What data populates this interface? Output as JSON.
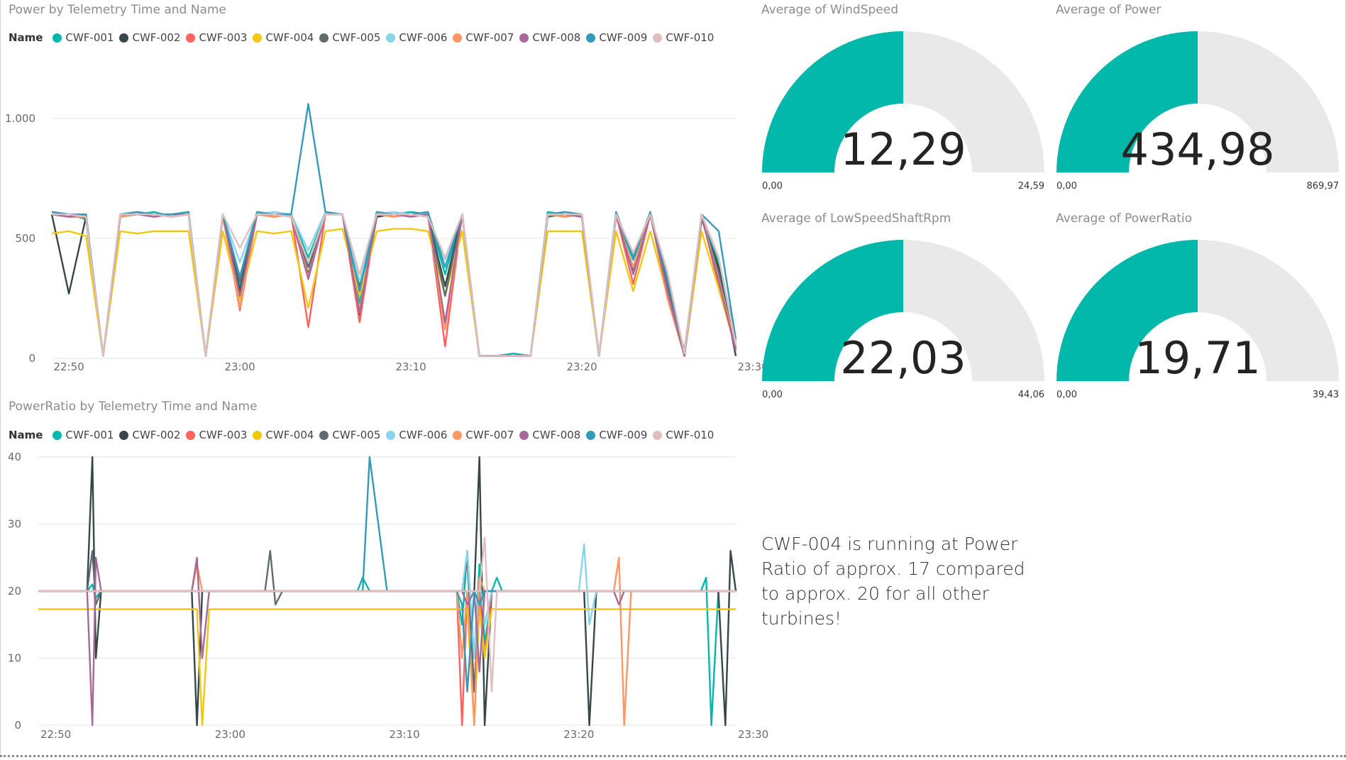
{
  "charts": {
    "power": {
      "title": "Power by Telemetry Time and Name"
    },
    "ratio": {
      "title": "PowerRatio by Telemetry Time and Name"
    },
    "legend_title": "Name"
  },
  "gauges": [
    {
      "title": "Average of WindSpeed",
      "value": "12,29",
      "min": "0,00",
      "max": "24,59",
      "fraction": 0.5
    },
    {
      "title": "Average of Power",
      "value": "434,98",
      "min": "0,00",
      "max": "869,97",
      "fraction": 0.5
    },
    {
      "title": "Average of LowSpeedShaftRpm",
      "value": "22,03",
      "min": "0,00",
      "max": "44,06",
      "fraction": 0.5
    },
    {
      "title": "Average of PowerRatio",
      "value": "19,71",
      "min": "0,00",
      "max": "39,43",
      "fraction": 0.5
    }
  ],
  "gauge_colors": {
    "fill": "#01b8aa",
    "track": "#e9e9e9"
  },
  "note": "CWF-004 is running at Power Ratio of approx. 17 compared to approx. 20 for all other turbines!",
  "chart_data": [
    {
      "type": "line",
      "title": "Power by Telemetry Time and Name",
      "legend_title": "Name",
      "xticks": [
        "22:50",
        "23:00",
        "23:10",
        "23:20",
        "23:30"
      ],
      "xlim_minutes": [
        -1,
        39
      ],
      "ylim": [
        0,
        1100
      ],
      "yticks": [
        0,
        500,
        1000
      ],
      "ytick_labels": [
        "0",
        "500",
        "1.000"
      ],
      "grid": true,
      "legend_position": "top-left",
      "x": [
        -1,
        0,
        1,
        2,
        3,
        4,
        5,
        6,
        7,
        8,
        9,
        10,
        11,
        12,
        13,
        14,
        15,
        16,
        17,
        18,
        19,
        20,
        21,
        22,
        23,
        24,
        25,
        26,
        27,
        28,
        29,
        30,
        31,
        32,
        33,
        34,
        35,
        36,
        37,
        38,
        39
      ],
      "series": [
        {
          "name": "CWF-001",
          "color": "#01b8aa",
          "values": [
            610,
            600,
            580,
            10,
            590,
            600,
            610,
            590,
            600,
            10,
            600,
            300,
            600,
            590,
            600,
            420,
            600,
            600,
            230,
            600,
            600,
            610,
            600,
            350,
            600,
            10,
            10,
            20,
            10,
            610,
            600,
            590,
            10,
            600,
            410,
            600,
            300,
            20,
            590,
            400,
            60
          ]
        },
        {
          "name": "CWF-002",
          "color": "#374649",
          "values": [
            600,
            270,
            590,
            10,
            590,
            600,
            600,
            590,
            600,
            10,
            590,
            280,
            600,
            600,
            590,
            350,
            600,
            600,
            180,
            590,
            600,
            600,
            590,
            300,
            600,
            10,
            10,
            10,
            10,
            600,
            590,
            600,
            10,
            590,
            380,
            600,
            290,
            10,
            580,
            380,
            10
          ]
        },
        {
          "name": "CWF-003",
          "color": "#fd625e",
          "values": [
            610,
            600,
            590,
            10,
            600,
            600,
            600,
            600,
            600,
            10,
            600,
            200,
            600,
            600,
            600,
            130,
            600,
            600,
            150,
            600,
            600,
            600,
            600,
            50,
            600,
            10,
            10,
            10,
            10,
            600,
            600,
            600,
            10,
            600,
            310,
            600,
            280,
            20,
            600,
            300,
            50
          ]
        },
        {
          "name": "CWF-004",
          "color": "#f2c80f",
          "values": [
            520,
            530,
            510,
            10,
            530,
            520,
            530,
            530,
            530,
            10,
            530,
            240,
            530,
            520,
            530,
            210,
            530,
            540,
            260,
            530,
            540,
            540,
            530,
            260,
            530,
            10,
            10,
            10,
            10,
            530,
            530,
            530,
            10,
            530,
            280,
            530,
            260,
            10,
            530,
            290,
            40
          ]
        },
        {
          "name": "CWF-005",
          "color": "#5f6b6d",
          "values": [
            600,
            590,
            590,
            10,
            590,
            600,
            600,
            590,
            600,
            10,
            600,
            320,
            600,
            590,
            600,
            380,
            600,
            600,
            300,
            600,
            600,
            600,
            590,
            260,
            600,
            10,
            10,
            10,
            10,
            590,
            600,
            590,
            10,
            600,
            370,
            600,
            310,
            30,
            590,
            360,
            40
          ]
        },
        {
          "name": "CWF-006",
          "color": "#8ad4eb",
          "values": [
            610,
            600,
            600,
            10,
            600,
            610,
            600,
            600,
            610,
            10,
            600,
            400,
            600,
            610,
            600,
            450,
            610,
            600,
            320,
            600,
            610,
            600,
            600,
            410,
            600,
            10,
            10,
            10,
            10,
            600,
            610,
            600,
            10,
            600,
            430,
            600,
            350,
            20,
            600,
            420,
            70
          ]
        },
        {
          "name": "CWF-007",
          "color": "#fe9666",
          "values": [
            600,
            590,
            590,
            10,
            590,
            600,
            600,
            590,
            600,
            10,
            590,
            210,
            600,
            590,
            600,
            340,
            600,
            600,
            200,
            600,
            590,
            600,
            590,
            120,
            600,
            10,
            10,
            10,
            10,
            600,
            590,
            600,
            10,
            590,
            380,
            600,
            250,
            10,
            600,
            330,
            50
          ]
        },
        {
          "name": "CWF-008",
          "color": "#a66999",
          "values": [
            600,
            590,
            600,
            10,
            600,
            600,
            590,
            600,
            600,
            10,
            600,
            260,
            600,
            600,
            590,
            330,
            600,
            600,
            190,
            600,
            600,
            590,
            600,
            150,
            600,
            10,
            10,
            10,
            10,
            600,
            600,
            590,
            10,
            600,
            350,
            600,
            280,
            10,
            590,
            320,
            30
          ]
        },
        {
          "name": "CWF-009",
          "color": "#3599b8",
          "values": [
            610,
            600,
            600,
            10,
            600,
            610,
            600,
            600,
            610,
            10,
            600,
            340,
            610,
            600,
            600,
            1060,
            610,
            600,
            280,
            610,
            600,
            600,
            610,
            380,
            600,
            10,
            10,
            10,
            10,
            600,
            610,
            600,
            10,
            610,
            420,
            610,
            330,
            20,
            600,
            530,
            80
          ]
        },
        {
          "name": "CWF-010",
          "color": "#dfbfbf",
          "values": [
            600,
            600,
            590,
            10,
            600,
            600,
            600,
            590,
            600,
            10,
            600,
            460,
            600,
            600,
            590,
            400,
            600,
            600,
            350,
            600,
            600,
            600,
            590,
            420,
            600,
            10,
            10,
            10,
            10,
            600,
            600,
            600,
            10,
            600,
            440,
            600,
            360,
            20,
            600,
            420,
            60
          ]
        }
      ]
    },
    {
      "type": "line",
      "title": "PowerRatio by Telemetry Time and Name",
      "legend_title": "Name",
      "xticks": [
        "22:50",
        "23:00",
        "23:10",
        "23:20",
        "23:30"
      ],
      "xlim_minutes": [
        -1,
        39
      ],
      "ylim": [
        0,
        40
      ],
      "yticks": [
        0,
        10,
        20,
        30,
        40
      ],
      "grid": true,
      "legend_position": "top-left",
      "x": [
        -1,
        1.8,
        2.1,
        2.3,
        2.6,
        3,
        7.8,
        8.1,
        8.4,
        8.8,
        12,
        12.3,
        12.6,
        13,
        17,
        17.3,
        17.6,
        18,
        19,
        23,
        23.3,
        23.6,
        24,
        24.3,
        24.6,
        25,
        25.3,
        25.6,
        26,
        30,
        30.3,
        30.6,
        31,
        32,
        32.3,
        32.6,
        33,
        37,
        37.3,
        37.6,
        38,
        38.4,
        38.7,
        39
      ],
      "series": [
        {
          "name": "CWF-001",
          "color": "#01b8aa",
          "values": [
            20,
            20,
            21,
            19,
            20,
            20,
            20,
            20,
            20,
            20,
            20,
            20,
            20,
            20,
            20,
            20,
            22,
            20,
            20,
            20,
            15,
            26,
            10,
            24,
            12,
            20,
            22,
            20,
            20,
            20,
            20,
            20,
            20,
            20,
            20,
            20,
            20,
            20,
            22,
            0,
            20,
            20,
            20,
            20
          ]
        },
        {
          "name": "CWF-002",
          "color": "#374649",
          "values": [
            20,
            20,
            40,
            10,
            20,
            20,
            20,
            0,
            20,
            20,
            20,
            20,
            20,
            20,
            20,
            20,
            20,
            20,
            20,
            20,
            20,
            20,
            20,
            40,
            0,
            20,
            20,
            20,
            20,
            20,
            20,
            0,
            20,
            20,
            20,
            20,
            20,
            20,
            20,
            20,
            20,
            0,
            26,
            20
          ]
        },
        {
          "name": "CWF-003",
          "color": "#fd625e",
          "values": [
            20,
            20,
            20,
            20,
            20,
            20,
            20,
            20,
            20,
            20,
            20,
            20,
            20,
            20,
            20,
            20,
            20,
            20,
            20,
            20,
            0,
            20,
            5,
            20,
            10,
            20,
            20,
            20,
            20,
            20,
            20,
            20,
            20,
            20,
            20,
            20,
            20,
            20,
            20,
            20,
            20,
            20,
            20,
            20
          ]
        },
        {
          "name": "CWF-004",
          "color": "#f2c80f",
          "values": [
            17.3,
            17.3,
            17.3,
            17.3,
            17.3,
            17.3,
            17.3,
            17.3,
            0,
            17.3,
            17.3,
            17.3,
            17.3,
            17.3,
            17.3,
            17.3,
            17.3,
            17.3,
            17.3,
            17.3,
            17.3,
            17.3,
            0,
            17.3,
            10,
            17.3,
            17.3,
            17.3,
            17.3,
            17.3,
            17.3,
            17.3,
            17.3,
            17.3,
            17.3,
            17.3,
            17.3,
            17.3,
            17.3,
            17.3,
            17.3,
            17.3,
            17.3,
            17.3
          ]
        },
        {
          "name": "CWF-005",
          "color": "#5f6b6d",
          "values": [
            20,
            20,
            26,
            18,
            20,
            20,
            20,
            20,
            20,
            20,
            20,
            26,
            18,
            20,
            20,
            20,
            20,
            20,
            20,
            20,
            20,
            25,
            5,
            20,
            20,
            20,
            20,
            20,
            20,
            20,
            20,
            20,
            20,
            20,
            20,
            20,
            20,
            20,
            20,
            20,
            20,
            20,
            20,
            20
          ]
        },
        {
          "name": "CWF-006",
          "color": "#8ad4eb",
          "values": [
            20,
            20,
            20,
            20,
            20,
            20,
            20,
            20,
            20,
            20,
            20,
            20,
            20,
            20,
            20,
            20,
            20,
            20,
            20,
            20,
            20,
            26,
            10,
            22,
            15,
            20,
            20,
            20,
            20,
            20,
            27,
            15,
            20,
            20,
            20,
            20,
            20,
            20,
            20,
            20,
            20,
            20,
            20,
            20
          ]
        },
        {
          "name": "CWF-007",
          "color": "#fe9666",
          "values": [
            20,
            20,
            20,
            20,
            20,
            20,
            20,
            24,
            20,
            20,
            20,
            20,
            20,
            20,
            20,
            20,
            20,
            20,
            20,
            20,
            10,
            20,
            0,
            22,
            20,
            20,
            20,
            20,
            20,
            20,
            20,
            20,
            20,
            20,
            25,
            0,
            20,
            20,
            20,
            20,
            20,
            20,
            20,
            20
          ]
        },
        {
          "name": "CWF-008",
          "color": "#a66999",
          "values": [
            20,
            20,
            0,
            25,
            20,
            20,
            20,
            25,
            10,
            20,
            20,
            20,
            20,
            20,
            20,
            20,
            20,
            20,
            20,
            20,
            20,
            18,
            20,
            8,
            20,
            20,
            20,
            20,
            20,
            20,
            20,
            20,
            20,
            20,
            18,
            20,
            20,
            20,
            20,
            20,
            20,
            20,
            20,
            20
          ]
        },
        {
          "name": "CWF-009",
          "color": "#3599b8",
          "values": [
            20,
            20,
            20,
            20,
            20,
            20,
            20,
            20,
            20,
            20,
            20,
            20,
            20,
            20,
            20,
            20,
            20,
            40,
            20,
            20,
            18,
            5,
            20,
            18,
            20,
            20,
            20,
            20,
            20,
            20,
            20,
            20,
            20,
            20,
            20,
            20,
            20,
            20,
            20,
            20,
            20,
            20,
            20,
            20
          ]
        },
        {
          "name": "CWF-010",
          "color": "#dfbfbf",
          "values": [
            20,
            20,
            20,
            20,
            20,
            20,
            20,
            20,
            20,
            20,
            20,
            20,
            20,
            20,
            20,
            20,
            20,
            20,
            20,
            20,
            20,
            20,
            20,
            20,
            28,
            5,
            20,
            20,
            20,
            20,
            20,
            20,
            20,
            20,
            20,
            20,
            20,
            20,
            20,
            20,
            20,
            20,
            20,
            20
          ]
        }
      ]
    }
  ]
}
